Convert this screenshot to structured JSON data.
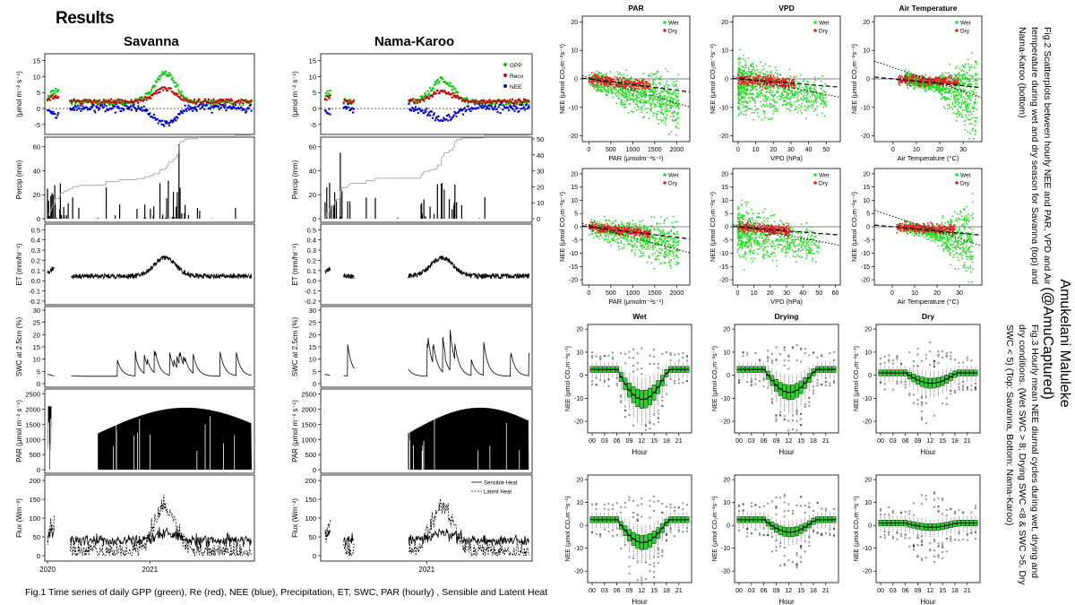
{
  "headings": {
    "results": "Results",
    "savanna": "Savanna",
    "nama_karoo": "Nama-Karoo"
  },
  "captions": {
    "fig1": "Fig.1 Time series of daily GPP (green), Re (red), NEE (blue), Precipitation, ET, SWC, PAR (hourly) , Sensible and Latent Heat",
    "fig2": "Fig.2 Scatterplots between  hourly NEE and PAR, VPD and Air temperature during wet and dry season for Savanna (top) and Nama-Karoo (bottom)",
    "fig3": "Fig.3 Hourly mean NEE diurnal cycles during wet, drying and dry conditions. (Wet SWC > 8; Drying SWC <8 & SWC >5, Dry SWC < 5) (Top: Savanna, Bottom: Nama-Karoo)"
  },
  "author": {
    "name": "Amukelani Maluleke",
    "handle": "(@AmuCaptured)"
  },
  "colors": {
    "gpp": "#00cc00",
    "reco": "#cc0000",
    "nee": "#0000cc",
    "wet": "#22dd22",
    "dry": "#dd2222",
    "box": "#33cc33"
  },
  "chart_data": [
    {
      "type": "line",
      "title": "Fig.1 time series (Savanna and Nama-Karoo)",
      "xlabel": "",
      "x_ticks": [
        "2020",
        "2021"
      ],
      "panels": [
        {
          "name": "flux",
          "ylabel": "(μmol m⁻² s⁻¹)",
          "ylim": [
            -7,
            16
          ],
          "ticks": [
            -5,
            0,
            5,
            10,
            15
          ],
          "legend": [
            "GPP",
            "Reco",
            "NEE"
          ],
          "legend_position": "top-right (Nama-Karoo)"
        },
        {
          "name": "precip",
          "ylabel": "Percip (mm)",
          "ylim": [
            0,
            65
          ],
          "ticks": [
            0,
            20,
            40,
            60
          ],
          "right_ticks": [
            0,
            10,
            20,
            30,
            40,
            50
          ],
          "cumulative_max": 50
        },
        {
          "name": "et",
          "ylabel": "ET (mm/hr⁻¹)",
          "ylim": [
            -0.2,
            0.52
          ],
          "ticks": [
            "-0.2",
            "-0.1",
            "0.0",
            "0.1",
            "0.2",
            "0.3",
            "0.4",
            "0.5"
          ]
        },
        {
          "name": "swc",
          "ylabel": "SWC at 2.5cm (%)",
          "ylim": [
            0,
            30
          ],
          "ticks": [
            0,
            5,
            10,
            15,
            20,
            25,
            30
          ]
        },
        {
          "name": "par",
          "ylabel": "PAR (μmol m⁻² s⁻¹)",
          "ylim": [
            0,
            2550
          ],
          "ticks": [
            0,
            500,
            1000,
            1500,
            2000,
            2500
          ],
          "peak": 2100
        },
        {
          "name": "heat",
          "ylabel": "Flux (Wm⁻²)",
          "ylim": [
            -5,
            205
          ],
          "ticks": [
            0,
            50,
            100,
            150,
            200
          ],
          "legend": [
            "Sensible Heat",
            "Latent Heat"
          ],
          "legend_position": "top-right (Nama-Karoo)"
        }
      ]
    },
    {
      "type": "scatter",
      "title": "Fig.2 NEE vs environmental drivers",
      "ylabel": "NEE (μmol CO₂m⁻²s⁻¹)",
      "legend": [
        "Wet",
        "Dry"
      ],
      "legend_position": "top-right",
      "rows": [
        "Savanna",
        "Nama-Karoo"
      ],
      "panels": [
        {
          "title": "PAR",
          "xlabel": "PAR (μmolm⁻²s⁻¹)",
          "xlim": [
            -150,
            2300
          ],
          "ylim": [
            -22,
            22
          ],
          "xticks": [
            0,
            500,
            1000,
            1500,
            2000
          ],
          "yticks": [
            -20,
            -10,
            0,
            10,
            20
          ]
        },
        {
          "title": "VPD",
          "xlabel": "VPD (hPa)",
          "xlim": [
            -3,
            58
          ],
          "ylim": [
            -22,
            22
          ],
          "xticks": [
            0,
            10,
            20,
            30,
            40,
            50
          ],
          "yticks": [
            -20,
            -10,
            0,
            10,
            20
          ]
        },
        {
          "title": "Air Temperature",
          "xlabel": "Air Temperature (°C)",
          "xlim": [
            -8,
            38
          ],
          "ylim": [
            -22,
            22
          ],
          "xticks": [
            0,
            10,
            20,
            30
          ],
          "yticks": [
            -20,
            -10,
            0,
            10,
            20
          ]
        },
        {
          "title": "",
          "xlabel": "PAR (μmolm⁻²s⁻¹)",
          "xlim": [
            -150,
            2300
          ],
          "ylim": [
            -22,
            22
          ],
          "xticks": [
            0,
            500,
            1000,
            1500,
            2000
          ],
          "yticks": [
            -20,
            -15,
            -10,
            -5,
            0,
            5,
            10,
            15,
            20
          ]
        },
        {
          "title": "",
          "xlabel": "VPD (hPa)",
          "xlim": [
            -3,
            63
          ],
          "ylim": [
            -22,
            22
          ],
          "xticks": [
            0,
            10,
            20,
            30,
            40,
            50,
            60
          ],
          "yticks": [
            -20,
            -15,
            -10,
            -5,
            0,
            5,
            10,
            15,
            20
          ]
        },
        {
          "title": "",
          "xlabel": "Air Temperature (°C)",
          "xlim": [
            -8,
            40
          ],
          "ylim": [
            -22,
            22
          ],
          "xticks": [
            0,
            10,
            20,
            30
          ],
          "yticks": [
            -20,
            -15,
            -10,
            -5,
            0,
            5,
            10,
            15,
            20
          ]
        }
      ]
    },
    {
      "type": "box",
      "title": "Fig.3 Hourly mean NEE diurnal cycles",
      "xlabel": "Hour",
      "ylabel": "NEE (μmol CO₂m⁻²s⁻¹)",
      "xticks": [
        "00",
        "03",
        "06",
        "09",
        "12",
        "15",
        "18",
        "21"
      ],
      "yticks": [
        -20,
        -10,
        0,
        10,
        20
      ],
      "ylim": [
        -25,
        22
      ],
      "panels": [
        {
          "title": "Wet",
          "site": "Savanna",
          "median_min": -10.5
        },
        {
          "title": "Drying",
          "site": "Savanna",
          "median_min": -7.5
        },
        {
          "title": "Dry",
          "site": "Savanna",
          "median_min": -3.5
        },
        {
          "title": "",
          "site": "Nama-Karoo",
          "median_min": -7.5
        },
        {
          "title": "",
          "site": "Nama-Karoo",
          "median_min": -3
        },
        {
          "title": "",
          "site": "Nama-Karoo",
          "median_min": -0.8
        }
      ]
    }
  ]
}
